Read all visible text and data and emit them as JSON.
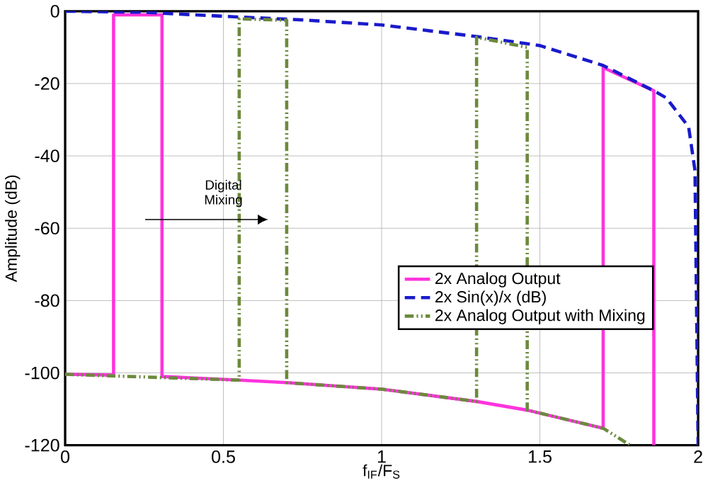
{
  "chart_data": {
    "type": "line",
    "xlabel": "f$_{IF}$/F$_{S}$",
    "ylabel": "Amplitude (dB)",
    "xlim": [
      0,
      2
    ],
    "ylim": [
      -120,
      0
    ],
    "xticks": [
      0,
      0.5,
      1,
      1.5,
      2
    ],
    "yticks": [
      -120,
      -100,
      -80,
      -60,
      -40,
      -20,
      0
    ],
    "grid": true,
    "legend": "right",
    "marker": "none",
    "annotations": [
      "Digital Mixing"
    ],
    "series": [
      {
        "name": "2x Analog Output",
        "color": "#ff33dd",
        "line_style": "solid",
        "x": [
          0,
          0.153,
          0.153,
          0.306,
          0.306,
          0.55,
          0.7,
          1.0,
          1.3,
          1.46,
          1.7,
          1.7,
          1.86,
          1.86
        ],
        "values": [
          -100.4,
          -100.6,
          -1,
          -1,
          -101,
          -102,
          -102.7,
          -104.5,
          -107.9,
          -110.3,
          -115.3,
          -15.6,
          -22,
          -120
        ]
      },
      {
        "name": "2x Sin(x)/x (dB)",
        "color": "#1a1acc",
        "line_style": "dashed",
        "x": [
          0,
          0.25,
          0.5,
          0.75,
          1.0,
          1.3,
          1.5,
          1.7,
          1.86,
          1.9,
          1.97,
          1.99,
          2.0
        ],
        "values": [
          0,
          -0.3,
          -1.4,
          -2.4,
          -3.8,
          -7,
          -9.5,
          -15,
          -22,
          -24,
          -32,
          -44,
          -120
        ]
      },
      {
        "name": "2x Analog Output with Mixing",
        "color": "#6b8a3c",
        "line_style": "dashdotdot",
        "x": [
          0,
          0.55,
          0.55,
          0.7,
          0.7,
          1.0,
          1.3,
          1.3,
          1.46,
          1.46,
          1.7,
          1.785
        ],
        "values": [
          -100.4,
          -102,
          -2.1,
          -2.5,
          -102.7,
          -104.5,
          -107.9,
          -7.2,
          -10,
          -110.3,
          -115.3,
          -120
        ]
      }
    ]
  }
}
